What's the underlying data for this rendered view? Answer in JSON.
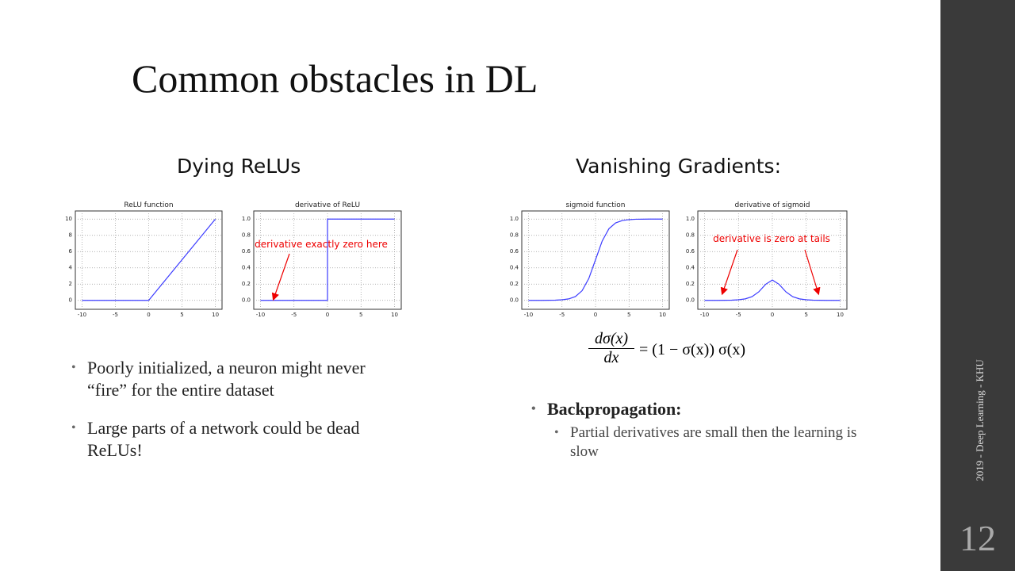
{
  "title": "Common obstacles in DL",
  "left": {
    "heading": "Dying ReLUs",
    "charts": [
      {
        "type": "line",
        "title": "ReLU function",
        "x": [
          -10,
          -9,
          -8,
          -7,
          -6,
          -5,
          -4,
          -3,
          -2,
          -1,
          0,
          1,
          2,
          3,
          4,
          5,
          6,
          7,
          8,
          9,
          10
        ],
        "series": [
          {
            "color": "#3b3bff",
            "values": [
              0,
              0,
              0,
              0,
              0,
              0,
              0,
              0,
              0,
              0,
              0,
              1,
              2,
              3,
              4,
              5,
              6,
              7,
              8,
              9,
              10
            ]
          }
        ],
        "xlim": [
          -11,
          11
        ],
        "ylim": [
          -1.1,
          11
        ],
        "xticks": [
          -10,
          -5,
          0,
          5,
          10
        ],
        "yticks": [
          0,
          2,
          4,
          6,
          8,
          10
        ],
        "grid": true
      },
      {
        "type": "line",
        "title": "derivative of ReLU",
        "x": [
          -10,
          0,
          0,
          10
        ],
        "series": [
          {
            "color": "#3b3bff",
            "values": [
              0,
              0,
              1,
              1
            ]
          }
        ],
        "xlim": [
          -11,
          11
        ],
        "ylim": [
          -0.11,
          1.1
        ],
        "xticks": [
          -10,
          -5,
          0,
          5,
          10
        ],
        "yticks": [
          {
            "value": 0,
            "label": "0.0"
          },
          {
            "value": 0.2,
            "label": "0.2"
          },
          {
            "value": 0.4,
            "label": "0.4"
          },
          {
            "value": 0.6,
            "label": "0.6"
          },
          {
            "value": 0.8,
            "label": "0.8"
          },
          {
            "value": 1,
            "label": "1.0"
          }
        ],
        "grid": true,
        "annotation": "derivative exactly zero here"
      }
    ],
    "bullets": [
      "Poorly initialized, a neuron might never “fire” for the entire dataset",
      "Large parts of a network could be dead ReLUs!"
    ]
  },
  "right": {
    "heading": "Vanishing Gradients:",
    "charts": [
      {
        "type": "line",
        "title": "sigmoid function",
        "x": [
          -10,
          -9,
          -8,
          -7,
          -6,
          -5,
          -4,
          -3,
          -2,
          -1,
          0,
          1,
          2,
          3,
          4,
          5,
          6,
          7,
          8,
          9,
          10
        ],
        "series": [
          {
            "color": "#3b3bff",
            "values": [
              0,
              0,
              0,
              0.001,
              0.002,
              0.007,
              0.018,
              0.047,
              0.119,
              0.269,
              0.5,
              0.731,
              0.881,
              0.953,
              0.982,
              0.993,
              0.998,
              0.999,
              1,
              1,
              1
            ]
          }
        ],
        "xlim": [
          -11,
          11
        ],
        "ylim": [
          -0.11,
          1.1
        ],
        "xticks": [
          -10,
          -5,
          0,
          5,
          10
        ],
        "yticks": [
          {
            "value": 0,
            "label": "0.0"
          },
          {
            "value": 0.2,
            "label": "0.2"
          },
          {
            "value": 0.4,
            "label": "0.4"
          },
          {
            "value": 0.6,
            "label": "0.6"
          },
          {
            "value": 0.8,
            "label": "0.8"
          },
          {
            "value": 1,
            "label": "1.0"
          }
        ],
        "grid": true
      },
      {
        "type": "line",
        "title": "derivative of sigmoid",
        "x": [
          -10,
          -9,
          -8,
          -7,
          -6,
          -5,
          -4,
          -3,
          -2,
          -1,
          0,
          1,
          2,
          3,
          4,
          5,
          6,
          7,
          8,
          9,
          10
        ],
        "series": [
          {
            "color": "#3b3bff",
            "values": [
              0,
              0,
              0,
              0.001,
              0.002,
              0.007,
              0.018,
              0.045,
              0.105,
              0.197,
              0.25,
              0.197,
              0.105,
              0.045,
              0.018,
              0.007,
              0.002,
              0.001,
              0,
              0,
              0
            ]
          }
        ],
        "xlim": [
          -11,
          11
        ],
        "ylim": [
          -0.11,
          1.1
        ],
        "xticks": [
          -10,
          -5,
          0,
          5,
          10
        ],
        "yticks": [
          {
            "value": 0,
            "label": "0.0"
          },
          {
            "value": 0.2,
            "label": "0.2"
          },
          {
            "value": 0.4,
            "label": "0.4"
          },
          {
            "value": 0.6,
            "label": "0.6"
          },
          {
            "value": 0.8,
            "label": "0.8"
          },
          {
            "value": 1,
            "label": "1.0"
          }
        ],
        "grid": true,
        "annotation": "derivative is zero at tails"
      }
    ],
    "equation": {
      "numerator": "dσ(x)",
      "denominator": "dx",
      "rhs": "= (1 − σ(x)) σ(x)"
    },
    "bullets": [
      {
        "text": "Backpropagation:",
        "sub": [
          "Partial derivatives are small then the learning is slow"
        ]
      }
    ]
  },
  "sidebar": {
    "text": "2019 - Deep Learning - KHU",
    "page_number": 12
  }
}
